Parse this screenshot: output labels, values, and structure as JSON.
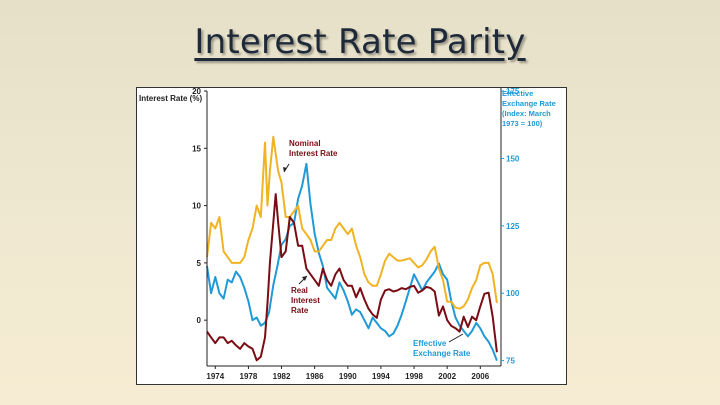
{
  "slide": {
    "title": "Interest Rate Parity"
  },
  "chart_data": {
    "type": "line",
    "left_axis": {
      "label": "Interest Rate (%)",
      "ticks": [
        20,
        15,
        10,
        5,
        0
      ],
      "ylim": [
        -4,
        20
      ]
    },
    "right_axis": {
      "label_lines": [
        "Effective",
        "Exchange Rate",
        "(Index: March",
        "1973 = 100)"
      ],
      "ticks": [
        175,
        150,
        125,
        100,
        75
      ],
      "ylim": [
        73,
        175
      ]
    },
    "x_ticks": [
      "1974",
      "1978",
      "1982",
      "1986",
      "1990",
      "1994",
      "1998",
      "2002",
      "2006"
    ],
    "xlim": [
      1973,
      2008.5
    ],
    "annotations": {
      "nominal": [
        "Nominal",
        "Interest Rate"
      ],
      "real": [
        "Real",
        "Interest",
        "Rate"
      ],
      "exchange": [
        "Effective",
        "Exchange Rate"
      ]
    },
    "colors": {
      "nominal": "#f0b323",
      "real": "#7a0c14",
      "exchange": "#1f9ad6"
    },
    "series": [
      {
        "axis": "left",
        "color_key": "nominal",
        "x": [
          1973,
          1973.5,
          1974,
          1974.5,
          1975,
          1975.5,
          1976,
          1976.5,
          1977,
          1977.5,
          1978,
          1978.5,
          1979,
          1979.5,
          1980,
          1980.3,
          1980.6,
          1981,
          1981.3,
          1981.6,
          1982,
          1982.5,
          1983,
          1983.5,
          1984,
          1984.5,
          1985,
          1985.5,
          1986,
          1986.5,
          1987,
          1987.5,
          1988,
          1988.5,
          1989,
          1989.5,
          1990,
          1990.5,
          1991,
          1991.5,
          1992,
          1992.5,
          1993,
          1993.5,
          1994,
          1994.5,
          1995,
          1995.5,
          1996,
          1996.5,
          1997,
          1997.5,
          1998,
          1998.5,
          1999,
          1999.5,
          2000,
          2000.5,
          2001,
          2001.5,
          2002,
          2002.5,
          2003,
          2003.5,
          2004,
          2004.5,
          2005,
          2005.5,
          2006,
          2006.5,
          2007,
          2007.5,
          2008
        ],
        "y": [
          5.5,
          8.5,
          8,
          9,
          6,
          5.5,
          5,
          5,
          5,
          5.5,
          7,
          8,
          10,
          9,
          15.5,
          10,
          13,
          16,
          14.5,
          13,
          12,
          9,
          9,
          9.5,
          10,
          8,
          7.5,
          7,
          6,
          6,
          6.5,
          7,
          7,
          8,
          8.5,
          8,
          7.5,
          8,
          6.5,
          5.5,
          4,
          3.3,
          3,
          3,
          4,
          5.2,
          5.8,
          5.5,
          5.2,
          5.2,
          5.3,
          5.4,
          5,
          4.6,
          4.8,
          5.3,
          6,
          6.4,
          4.5,
          3.5,
          1.6,
          1.6,
          1.1,
          1,
          1.2,
          1.8,
          2.8,
          3.5,
          4.8,
          5,
          5,
          4,
          1.5
        ]
      },
      {
        "axis": "left",
        "color_key": "real",
        "x": [
          1973,
          1973.5,
          1974,
          1974.5,
          1975,
          1975.5,
          1976,
          1976.5,
          1977,
          1977.5,
          1978,
          1978.5,
          1979,
          1979.5,
          1980,
          1980.3,
          1980.6,
          1981,
          1981.3,
          1981.6,
          1982,
          1982.5,
          1983,
          1983.5,
          1984,
          1984.5,
          1985,
          1985.5,
          1986,
          1986.5,
          1987,
          1987.5,
          1988,
          1988.5,
          1989,
          1989.5,
          1990,
          1990.5,
          1991,
          1991.5,
          1992,
          1992.5,
          1993,
          1993.5,
          1994,
          1994.5,
          1995,
          1995.5,
          1996,
          1996.5,
          1997,
          1997.5,
          1998,
          1998.5,
          1999,
          1999.5,
          2000,
          2000.5,
          2001,
          2001.5,
          2002,
          2002.5,
          2003,
          2003.5,
          2004,
          2004.5,
          2005,
          2005.5,
          2006,
          2006.5,
          2007,
          2007.5,
          2008
        ],
        "y": [
          -1,
          -1.5,
          -2,
          -1.5,
          -1.5,
          -2,
          -1.8,
          -2.2,
          -2.5,
          -2,
          -2.3,
          -2.5,
          -3.5,
          -3.2,
          -1.5,
          1.5,
          5,
          8.5,
          11,
          8.5,
          5.5,
          6,
          9,
          8.5,
          6.5,
          6.5,
          4.5,
          4,
          3.5,
          3,
          4.5,
          3.5,
          3,
          4,
          4.5,
          3.5,
          3,
          3,
          2,
          2.8,
          1.8,
          1,
          0.5,
          0.2,
          1.8,
          2.6,
          2.7,
          2.5,
          2.6,
          2.8,
          2.7,
          2.9,
          3,
          2.4,
          2.6,
          2.9,
          2.8,
          2.5,
          0.4,
          1.2,
          0,
          -0.5,
          -0.7,
          -1,
          0.3,
          -0.6,
          0.3,
          0,
          1.2,
          2.3,
          2.4,
          0.3,
          -2.8
        ]
      },
      {
        "axis": "right",
        "color_key": "exchange",
        "x": [
          1973,
          1973.5,
          1974,
          1974.5,
          1975,
          1975.5,
          1976,
          1976.5,
          1977,
          1977.5,
          1978,
          1978.5,
          1979,
          1979.5,
          1980,
          1980.5,
          1981,
          1981.5,
          1982,
          1982.5,
          1983,
          1983.5,
          1984,
          1984.5,
          1985,
          1985.5,
          1986,
          1986.5,
          1987,
          1987.5,
          1988,
          1988.5,
          1989,
          1989.5,
          1990,
          1990.5,
          1991,
          1991.5,
          1992,
          1992.5,
          1993,
          1993.5,
          1994,
          1994.5,
          1995,
          1995.5,
          1996,
          1996.5,
          1997,
          1997.5,
          1998,
          1998.5,
          1999,
          1999.5,
          2000,
          2000.5,
          2001,
          2001.5,
          2002,
          2002.5,
          2003,
          2003.5,
          2004,
          2004.5,
          2005,
          2005.5,
          2006,
          2006.5,
          2007,
          2007.5,
          2008
        ],
        "y": [
          110,
          100,
          106,
          100,
          98,
          105,
          104,
          108,
          106,
          102,
          97,
          90,
          91,
          88,
          89,
          93,
          103,
          110,
          118,
          120,
          125,
          126,
          135,
          140,
          148,
          133,
          122,
          115,
          110,
          102,
          100,
          98,
          104,
          101,
          97,
          92,
          94,
          93,
          90,
          87,
          91,
          89,
          87,
          86,
          84,
          85,
          88,
          92,
          97,
          102,
          107,
          104,
          101,
          104,
          106,
          108,
          111,
          107,
          105,
          97,
          91,
          88,
          86,
          84,
          86,
          89,
          87,
          84,
          82,
          79,
          75
        ]
      }
    ]
  }
}
